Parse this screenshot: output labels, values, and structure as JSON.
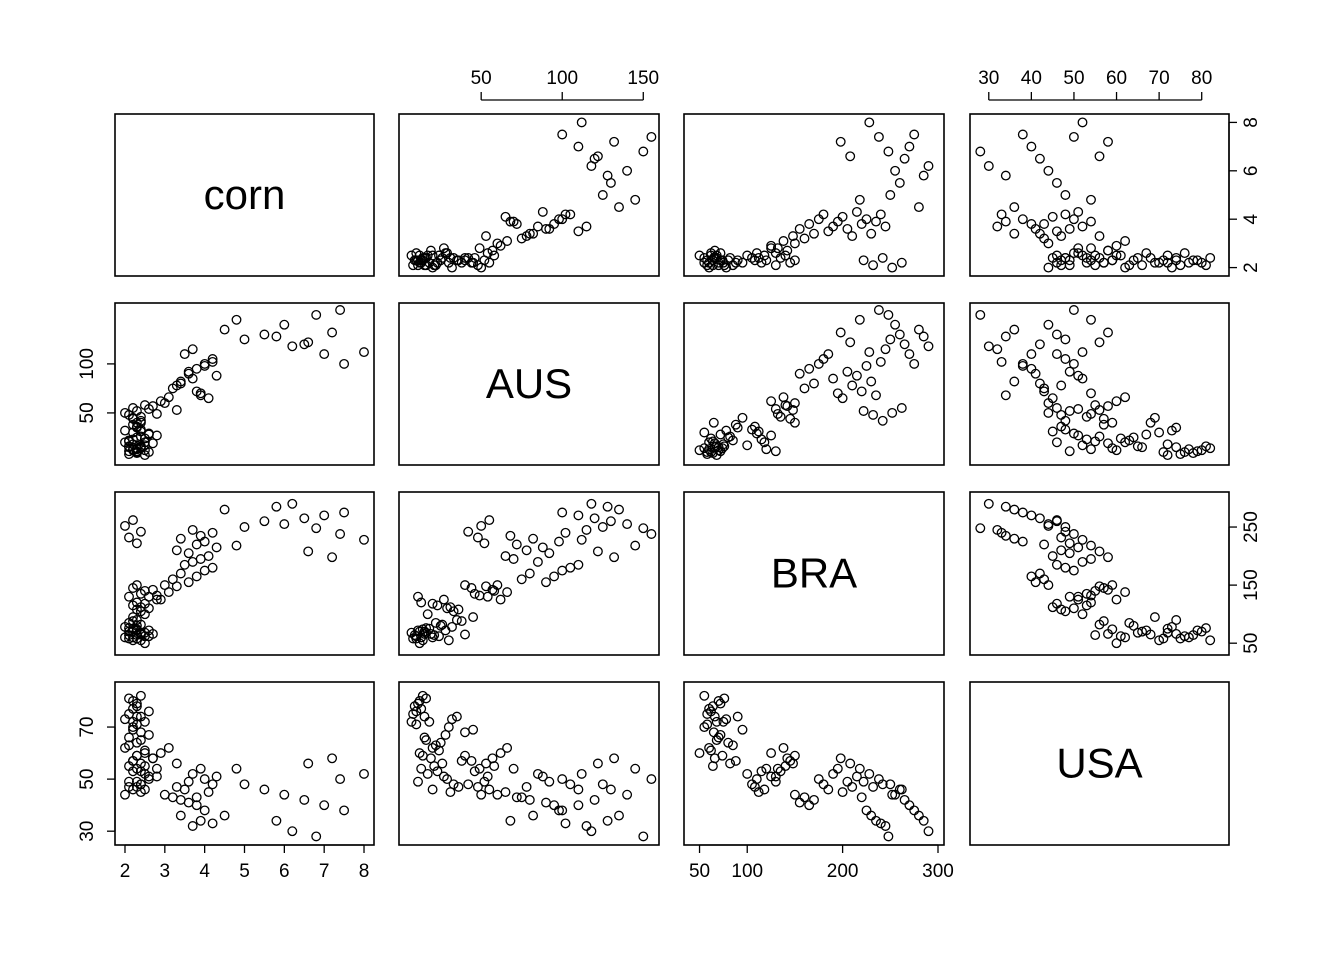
{
  "chart_data": {
    "type": "scatter",
    "subtype": "pairs-matrix",
    "variables": [
      "corn",
      "AUS",
      "BRA",
      "USA"
    ],
    "ranges": {
      "corn": [
        1.9,
        8.1
      ],
      "AUS": [
        3,
        156
      ],
      "BRA": [
        40,
        300
      ],
      "USA": [
        27,
        85
      ]
    },
    "ticks": {
      "corn": [
        2,
        3,
        4,
        5,
        6,
        7,
        8
      ],
      "AUS": [
        50,
        100,
        150
      ],
      "BRA": [
        50,
        100,
        150,
        200,
        250,
        300
      ],
      "USA": [
        30,
        40,
        50,
        60,
        70,
        80
      ]
    },
    "axes": {
      "bottom": [
        {
          "column": 0,
          "variable": "corn",
          "ticks": [
            2,
            3,
            4,
            5,
            6,
            7,
            8
          ]
        },
        {
          "column": 2,
          "variable": "BRA",
          "ticks": [
            50,
            100,
            200,
            300
          ]
        }
      ],
      "top": [
        {
          "column": 1,
          "variable": "AUS",
          "ticks": [
            50,
            100,
            150
          ]
        },
        {
          "column": 3,
          "variable": "USA",
          "ticks": [
            30,
            40,
            50,
            60,
            70,
            80
          ]
        }
      ],
      "left": [
        {
          "row": 1,
          "variable": "AUS",
          "ticks": [
            50,
            100
          ]
        },
        {
          "row": 3,
          "variable": "USA",
          "ticks": [
            30,
            50,
            70
          ]
        }
      ],
      "right": [
        {
          "row": 0,
          "variable": "corn",
          "ticks": [
            2,
            4,
            6,
            8
          ]
        },
        {
          "row": 2,
          "variable": "BRA",
          "ticks": [
            50,
            150,
            250
          ]
        }
      ]
    },
    "observations": {
      "corn": [
        2.0,
        2.1,
        2.2,
        2.3,
        2.4,
        2.2,
        2.5,
        2.3,
        2.1,
        2.6,
        2.4,
        2.2,
        2.3,
        2.5,
        2.0,
        2.7,
        2.4,
        2.3,
        2.2,
        2.1,
        2.5,
        2.6,
        2.3,
        2.4,
        2.2,
        2.8,
        2.1,
        2.3,
        2.5,
        2.4,
        3.0,
        3.2,
        3.4,
        3.6,
        3.8,
        4.0,
        4.2,
        3.5,
        3.7,
        3.9,
        4.1,
        3.3,
        3.6,
        4.3,
        3.8,
        4.0,
        3.4,
        3.9,
        4.2,
        3.7,
        5.0,
        5.5,
        6.0,
        6.5,
        7.0,
        7.5,
        4.5,
        5.8,
        6.2,
        6.8,
        7.4,
        8.0,
        4.8,
        6.6,
        7.2,
        2.0,
        2.2,
        2.4,
        2.1,
        2.3,
        2.5,
        2.2,
        2.4,
        2.6,
        2.3,
        2.9,
        3.1,
        2.7,
        3.3,
        2.8,
        2.1,
        2.3,
        2.2,
        2.4,
        2.6,
        2.5,
        2.3,
        2.2,
        2.4,
        2.1
      ],
      "AUS": [
        20,
        15,
        30,
        25,
        40,
        18,
        12,
        35,
        22,
        28,
        16,
        45,
        10,
        24,
        32,
        19,
        26,
        14,
        38,
        21,
        17,
        29,
        13,
        33,
        23,
        27,
        11,
        36,
        20,
        31,
        60,
        75,
        80,
        90,
        95,
        100,
        105,
        110,
        85,
        70,
        65,
        78,
        92,
        88,
        72,
        98,
        82,
        68,
        102,
        115,
        125,
        130,
        140,
        120,
        110,
        100,
        135,
        128,
        118,
        150,
        155,
        112,
        145,
        122,
        132,
        50,
        55,
        42,
        48,
        52,
        58,
        44,
        46,
        54,
        40,
        62,
        66,
        57,
        53,
        49,
        8,
        9,
        12,
        14,
        10,
        7,
        11,
        13,
        15,
        16
      ],
      "BRA": [
        60,
        70,
        55,
        80,
        65,
        75,
        50,
        90,
        85,
        72,
        68,
        95,
        58,
        62,
        78,
        66,
        82,
        74,
        88,
        64,
        100,
        110,
        120,
        105,
        115,
        125,
        130,
        108,
        118,
        112,
        150,
        160,
        170,
        155,
        165,
        175,
        180,
        185,
        190,
        195,
        200,
        210,
        205,
        215,
        220,
        225,
        230,
        235,
        240,
        245,
        250,
        260,
        255,
        265,
        270,
        275,
        280,
        285,
        290,
        248,
        238,
        228,
        218,
        208,
        198,
        252,
        262,
        242,
        232,
        222,
        140,
        145,
        135,
        130,
        150,
        125,
        138,
        142,
        148,
        132,
        58,
        64,
        70,
        55,
        62,
        68,
        72,
        60,
        66,
        76
      ],
      "USA": [
        62,
        66,
        70,
        64,
        68,
        72,
        60,
        74,
        63,
        67,
        65,
        69,
        71,
        61,
        73,
        58,
        56,
        59,
        57,
        55,
        52,
        50,
        54,
        48,
        53,
        51,
        49,
        47,
        46,
        45,
        44,
        43,
        42,
        41,
        40,
        50,
        48,
        46,
        52,
        54,
        45,
        47,
        49,
        51,
        43,
        38,
        36,
        34,
        33,
        32,
        48,
        46,
        44,
        42,
        40,
        38,
        36,
        34,
        30,
        28,
        50,
        52,
        54,
        56,
        58,
        44,
        46,
        48,
        47,
        49,
        55,
        57,
        53,
        51,
        59,
        60,
        62,
        58,
        56,
        54,
        75,
        78,
        80,
        82,
        76,
        72,
        79,
        77,
        74,
        81
      ]
    }
  }
}
